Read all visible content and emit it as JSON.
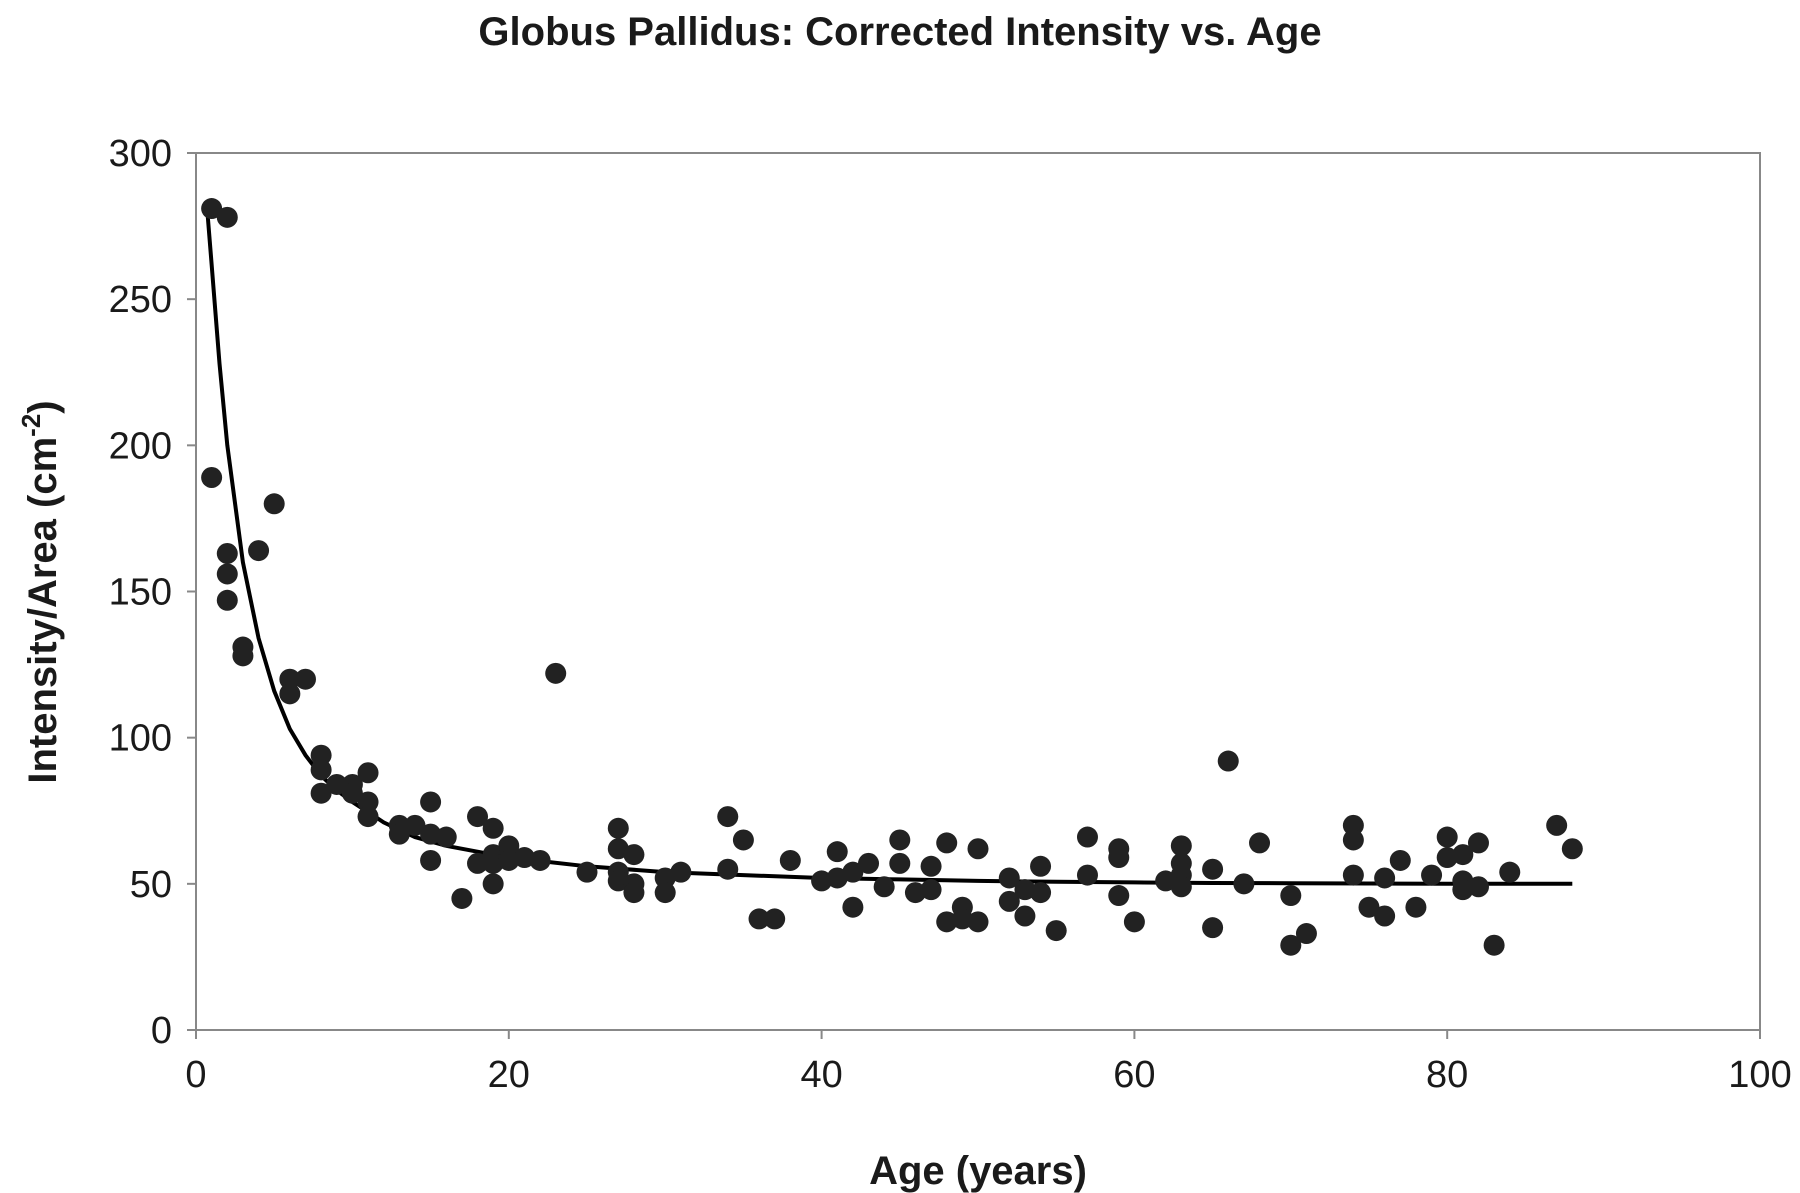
{
  "chart_data": {
    "type": "scatter",
    "title": "Globus Pallidus:  Corrected Intensity vs. Age",
    "xlabel": "Age (years)",
    "ylabel": {
      "main": "Intensity/Area (cm",
      "superscript": "-2",
      "close": ")"
    },
    "xlim": [
      0,
      100
    ],
    "ylim": [
      0,
      300
    ],
    "x_ticks": [
      0,
      20,
      40,
      60,
      80,
      100
    ],
    "y_ticks": [
      0,
      50,
      100,
      150,
      200,
      250,
      300
    ],
    "grid": false,
    "legend": "none",
    "colors": {
      "points": "#222222",
      "curve": "#000000",
      "frame": "#888888"
    },
    "series": [
      {
        "kind": "points",
        "points": [
          [
            1,
            281
          ],
          [
            2,
            278
          ],
          [
            1,
            189
          ],
          [
            5,
            180
          ],
          [
            2,
            163
          ],
          [
            4,
            164
          ],
          [
            2,
            156
          ],
          [
            2,
            147
          ],
          [
            3,
            131
          ],
          [
            3,
            128
          ],
          [
            6,
            120
          ],
          [
            7,
            120
          ],
          [
            6,
            115
          ],
          [
            23,
            122
          ],
          [
            8,
            94
          ],
          [
            8,
            89
          ],
          [
            8,
            81
          ],
          [
            9,
            84
          ],
          [
            10,
            84
          ],
          [
            10,
            81
          ],
          [
            11,
            88
          ],
          [
            11,
            78
          ],
          [
            11,
            73
          ],
          [
            13,
            70
          ],
          [
            13,
            67
          ],
          [
            14,
            70
          ],
          [
            15,
            78
          ],
          [
            15,
            67
          ],
          [
            15,
            58
          ],
          [
            16,
            66
          ],
          [
            17,
            45
          ],
          [
            18,
            73
          ],
          [
            18,
            57
          ],
          [
            19,
            69
          ],
          [
            19,
            60
          ],
          [
            19,
            57
          ],
          [
            19,
            50
          ],
          [
            20,
            63
          ],
          [
            20,
            58
          ],
          [
            21,
            59
          ],
          [
            22,
            58
          ],
          [
            25,
            54
          ],
          [
            27,
            69
          ],
          [
            27,
            62
          ],
          [
            27,
            54
          ],
          [
            27,
            51
          ],
          [
            28,
            60
          ],
          [
            28,
            50
          ],
          [
            28,
            47
          ],
          [
            30,
            52
          ],
          [
            30,
            47
          ],
          [
            31,
            54
          ],
          [
            34,
            73
          ],
          [
            34,
            55
          ],
          [
            35,
            65
          ],
          [
            36,
            38
          ],
          [
            37,
            38
          ],
          [
            38,
            58
          ],
          [
            40,
            51
          ],
          [
            41,
            61
          ],
          [
            41,
            52
          ],
          [
            42,
            54
          ],
          [
            42,
            42
          ],
          [
            43,
            57
          ],
          [
            44,
            49
          ],
          [
            45,
            65
          ],
          [
            45,
            57
          ],
          [
            46,
            47
          ],
          [
            47,
            56
          ],
          [
            47,
            48
          ],
          [
            48,
            64
          ],
          [
            48,
            37
          ],
          [
            49,
            42
          ],
          [
            49,
            38
          ],
          [
            50,
            62
          ],
          [
            50,
            37
          ],
          [
            52,
            52
          ],
          [
            52,
            44
          ],
          [
            53,
            48
          ],
          [
            53,
            39
          ],
          [
            54,
            56
          ],
          [
            54,
            47
          ],
          [
            55,
            34
          ],
          [
            57,
            66
          ],
          [
            57,
            53
          ],
          [
            59,
            62
          ],
          [
            59,
            59
          ],
          [
            59,
            46
          ],
          [
            60,
            37
          ],
          [
            62,
            51
          ],
          [
            63,
            63
          ],
          [
            63,
            57
          ],
          [
            63,
            53
          ],
          [
            63,
            49
          ],
          [
            65,
            55
          ],
          [
            65,
            35
          ],
          [
            66,
            92
          ],
          [
            67,
            50
          ],
          [
            68,
            64
          ],
          [
            70,
            46
          ],
          [
            70,
            29
          ],
          [
            71,
            33
          ],
          [
            74,
            70
          ],
          [
            74,
            65
          ],
          [
            74,
            53
          ],
          [
            75,
            42
          ],
          [
            76,
            52
          ],
          [
            76,
            39
          ],
          [
            77,
            58
          ],
          [
            78,
            42
          ],
          [
            79,
            53
          ],
          [
            80,
            66
          ],
          [
            80,
            59
          ],
          [
            81,
            60
          ],
          [
            81,
            51
          ],
          [
            81,
            48
          ],
          [
            82,
            64
          ],
          [
            82,
            49
          ],
          [
            83,
            29
          ],
          [
            84,
            54
          ],
          [
            87,
            70
          ],
          [
            88,
            62
          ]
        ]
      },
      {
        "kind": "fit-curve",
        "points": [
          [
            0.7,
            282
          ],
          [
            1,
            262
          ],
          [
            1.5,
            228
          ],
          [
            2,
            200
          ],
          [
            3,
            160
          ],
          [
            4,
            134
          ],
          [
            5,
            116
          ],
          [
            6,
            103
          ],
          [
            7,
            94
          ],
          [
            8,
            87
          ],
          [
            9,
            82
          ],
          [
            10,
            78
          ],
          [
            12,
            71
          ],
          [
            14,
            66
          ],
          [
            16,
            63
          ],
          [
            18,
            61
          ],
          [
            20,
            59
          ],
          [
            25,
            56
          ],
          [
            30,
            54
          ],
          [
            35,
            53
          ],
          [
            40,
            52
          ],
          [
            45,
            51.5
          ],
          [
            50,
            51
          ],
          [
            55,
            50.7
          ],
          [
            60,
            50.5
          ],
          [
            65,
            50.3
          ],
          [
            70,
            50.2
          ],
          [
            75,
            50.1
          ],
          [
            80,
            50
          ],
          [
            85,
            50
          ],
          [
            88,
            50
          ]
        ]
      }
    ]
  }
}
